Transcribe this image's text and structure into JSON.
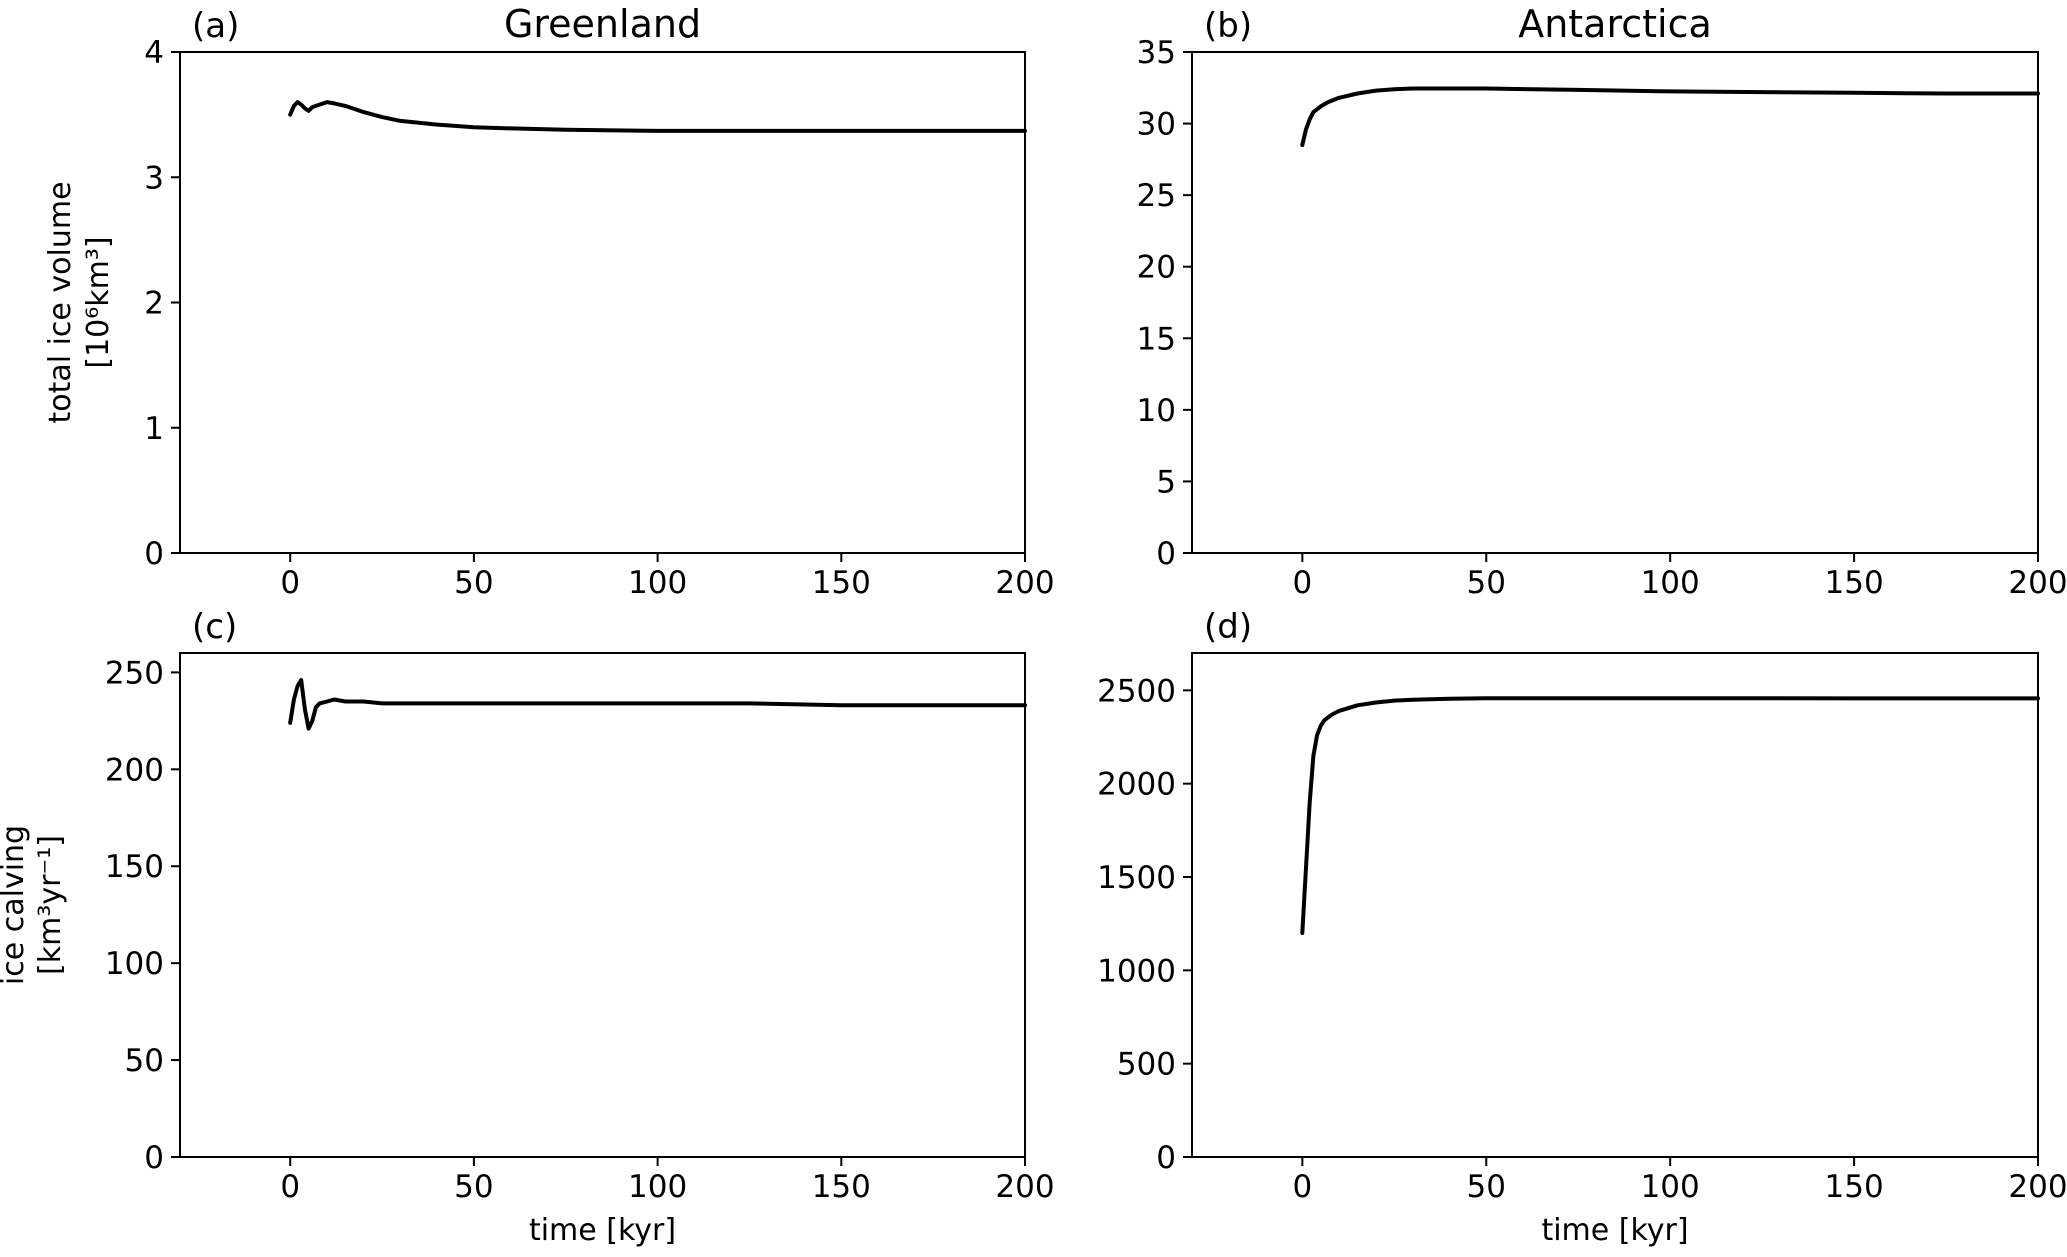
{
  "chart_data": [
    {
      "type": "line",
      "panel_label": "(a)",
      "title": "Greenland",
      "xlabel": "",
      "ylabel": [
        "total ice volume",
        "[10⁶km³]"
      ],
      "xlim": [
        -30,
        200
      ],
      "ylim": [
        0,
        4
      ],
      "xticks": [
        0,
        50,
        100,
        150,
        200
      ],
      "yticks": [
        0,
        1,
        2,
        3,
        4
      ],
      "series": [
        {
          "color": "#000000",
          "x": [
            0,
            1,
            2,
            3,
            4,
            5,
            6,
            8,
            10,
            12,
            15,
            20,
            25,
            30,
            40,
            50,
            60,
            75,
            100,
            125,
            150,
            175,
            200
          ],
          "y": [
            3.5,
            3.57,
            3.6,
            3.58,
            3.55,
            3.53,
            3.56,
            3.58,
            3.6,
            3.59,
            3.57,
            3.52,
            3.48,
            3.45,
            3.42,
            3.4,
            3.39,
            3.38,
            3.37,
            3.37,
            3.37,
            3.37,
            3.37
          ]
        }
      ]
    },
    {
      "type": "line",
      "panel_label": "(b)",
      "title": "Antarctica",
      "xlabel": "",
      "ylabel": "",
      "xlim": [
        -30,
        200
      ],
      "ylim": [
        0,
        35
      ],
      "xticks": [
        0,
        50,
        100,
        150,
        200
      ],
      "yticks": [
        0,
        5,
        10,
        15,
        20,
        25,
        30,
        35
      ],
      "series": [
        {
          "color": "#000000",
          "x": [
            0,
            1,
            2,
            3,
            5,
            7,
            10,
            15,
            20,
            25,
            30,
            40,
            50,
            75,
            100,
            125,
            150,
            175,
            200
          ],
          "y": [
            28.5,
            29.6,
            30.3,
            30.8,
            31.2,
            31.5,
            31.8,
            32.1,
            32.3,
            32.4,
            32.45,
            32.45,
            32.45,
            32.35,
            32.25,
            32.2,
            32.15,
            32.1,
            32.1
          ]
        }
      ]
    },
    {
      "type": "line",
      "panel_label": "(c)",
      "title": "",
      "xlabel": "time [kyr]",
      "ylabel": [
        "ice calving",
        "[km³yr⁻¹]"
      ],
      "xlim": [
        -30,
        200
      ],
      "ylim": [
        0,
        260
      ],
      "xticks": [
        0,
        50,
        100,
        150,
        200
      ],
      "yticks": [
        0,
        50,
        100,
        150,
        200,
        250
      ],
      "series": [
        {
          "color": "#000000",
          "x": [
            0,
            1,
            2,
            3,
            4,
            5,
            6,
            7,
            8,
            10,
            12,
            15,
            20,
            25,
            30,
            40,
            50,
            75,
            100,
            125,
            150,
            175,
            200
          ],
          "y": [
            224,
            236,
            243,
            246,
            231,
            221,
            225,
            232,
            234,
            235,
            236,
            235,
            235,
            234,
            234,
            234,
            234,
            234,
            234,
            234,
            233,
            233,
            233
          ]
        }
      ]
    },
    {
      "type": "line",
      "panel_label": "(d)",
      "title": "",
      "xlabel": "time [kyr]",
      "ylabel": "",
      "xlim": [
        -30,
        200
      ],
      "ylim": [
        0,
        2700
      ],
      "xticks": [
        0,
        50,
        100,
        150,
        200
      ],
      "yticks": [
        0,
        500,
        1000,
        1500,
        2000,
        2500
      ],
      "series": [
        {
          "color": "#000000",
          "x": [
            0,
            1,
            2,
            3,
            4,
            5,
            6,
            8,
            10,
            15,
            20,
            25,
            30,
            40,
            50,
            75,
            100,
            125,
            150,
            175,
            200
          ],
          "y": [
            1200,
            1550,
            1900,
            2150,
            2260,
            2310,
            2340,
            2370,
            2390,
            2420,
            2435,
            2445,
            2450,
            2455,
            2458,
            2458,
            2458,
            2458,
            2457,
            2457,
            2457
          ]
        }
      ]
    }
  ]
}
